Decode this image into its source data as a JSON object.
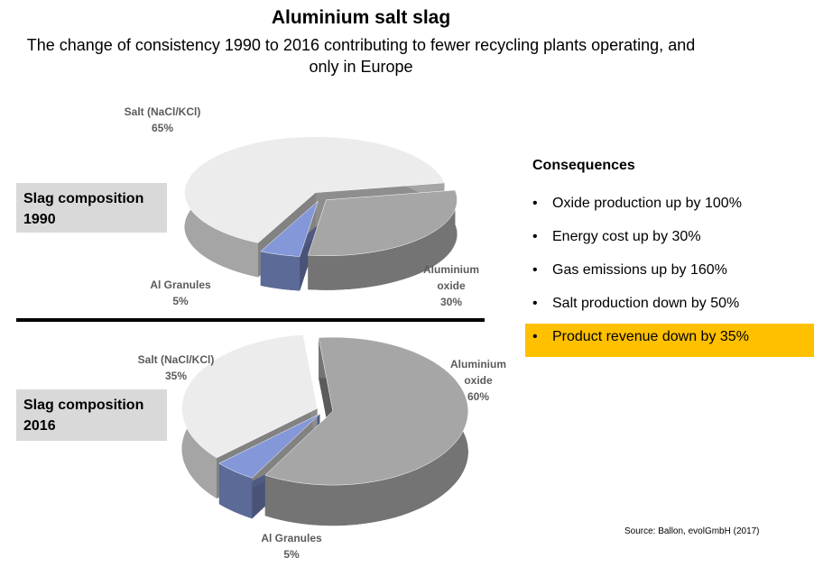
{
  "title": "Aluminium salt slag",
  "subtitle": "The change of consistency 1990 to 2016 contributing to fewer recycling plants operating, and only in Europe",
  "chart_data": [
    {
      "type": "pie",
      "title": "Slag composition 1990",
      "categories": [
        "Aluminium oxide",
        "Al Granules",
        "Salt (NaCl/KCl)"
      ],
      "values": [
        30,
        5,
        65
      ],
      "value_labels": [
        "30%",
        "5%",
        "65%"
      ],
      "colors": [
        "#a6a6a6",
        "#8497d8",
        "#ececec"
      ]
    },
    {
      "type": "pie",
      "title": "Slag composition 2016",
      "categories": [
        "Aluminium oxide",
        "Al Granules",
        "Salt (NaCl/KCl)"
      ],
      "values": [
        60,
        5,
        35
      ],
      "value_labels": [
        "60%",
        "5%",
        "35%"
      ],
      "colors": [
        "#a6a6a6",
        "#8497d8",
        "#ececec"
      ]
    }
  ],
  "consequences": {
    "heading": "Consequences",
    "items": [
      "Oxide production up by 100%",
      "Energy cost up by 30%",
      "Gas emissions up by 160%",
      "Salt production down by 50%",
      "Product revenue down by 35%"
    ]
  },
  "source": "Source: Ballon, evolGmbH (2017)"
}
